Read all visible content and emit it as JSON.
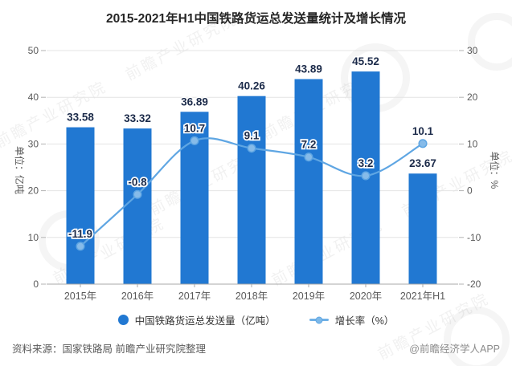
{
  "title": "2015-2021年H1中国铁路货运总发送量统计及增长情况",
  "chart_data": {
    "type": "bar+line",
    "categories": [
      "2015年",
      "2016年",
      "2017年",
      "2018年",
      "2019年",
      "2020年",
      "2021年H1"
    ],
    "series": [
      {
        "name": "中国铁路货运总发送量（亿吨）",
        "type": "bar",
        "axis": "left",
        "color": "#2178d2",
        "values": [
          33.58,
          33.32,
          36.89,
          40.26,
          43.89,
          45.52,
          23.67
        ]
      },
      {
        "name": "增长率（%）",
        "type": "line",
        "axis": "right",
        "color": "#5fa6e3",
        "marker_fill": "#86bbe9",
        "values": [
          -11.9,
          -0.8,
          10.7,
          9.1,
          7.2,
          3.2,
          10.1
        ]
      }
    ],
    "left_axis": {
      "label": "单位：亿吨",
      "min": 0,
      "max": 50,
      "ticks": [
        0,
        10,
        20,
        30,
        40,
        50
      ]
    },
    "right_axis": {
      "label": "单位：%",
      "min": -20,
      "max": 30,
      "ticks": [
        -20,
        -10,
        0,
        10,
        20,
        30
      ]
    },
    "grid": true,
    "legend_position": "bottom",
    "label_color": "#1c2b4a"
  },
  "watermark": {
    "text": "前瞻产业研究院"
  },
  "footer": {
    "source": "资料来源：国家铁路局 前瞻产业研究院整理",
    "credit": "@前瞻经济学人APP"
  }
}
